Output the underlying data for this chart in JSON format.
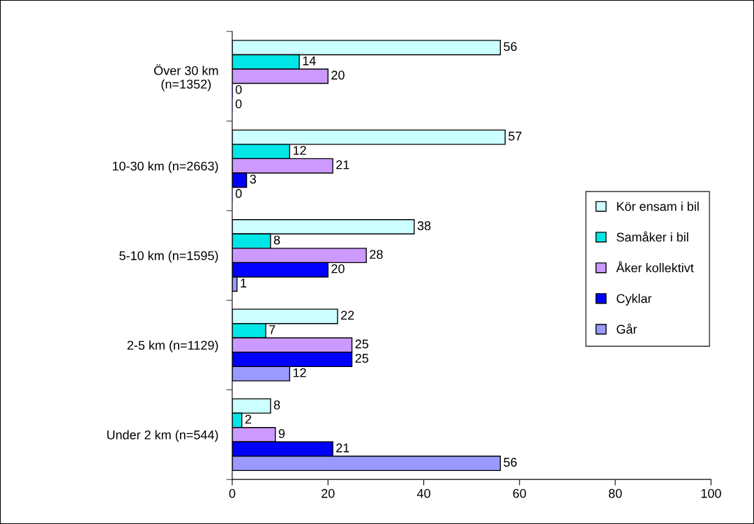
{
  "chart_data": {
    "type": "bar",
    "orientation": "horizontal",
    "categories": [
      "Över 30 km\n(n=1352)",
      "10-30 km (n=2663)",
      "5-10 km (n=1595)",
      "2-5 km (n=1129)",
      "Under 2 km (n=544)"
    ],
    "series": [
      {
        "name": "Kör ensam i bil",
        "color": "#ccffff",
        "values": [
          56,
          57,
          38,
          22,
          8
        ]
      },
      {
        "name": "Samåker i bil",
        "color": "#00e6e6",
        "values": [
          14,
          12,
          8,
          7,
          2
        ]
      },
      {
        "name": "Åker kollektivt",
        "color": "#cc99ff",
        "values": [
          20,
          21,
          28,
          25,
          9
        ]
      },
      {
        "name": "Cyklar",
        "color": "#0000ff",
        "values": [
          0,
          3,
          20,
          25,
          21
        ]
      },
      {
        "name": "Går",
        "color": "#9999ff",
        "values": [
          0,
          0,
          1,
          12,
          56
        ]
      }
    ],
    "xlim": [
      0,
      100
    ],
    "xticks": [
      0,
      20,
      40,
      60,
      80,
      100
    ],
    "data_labels": true,
    "legend": "right",
    "grid": false
  }
}
